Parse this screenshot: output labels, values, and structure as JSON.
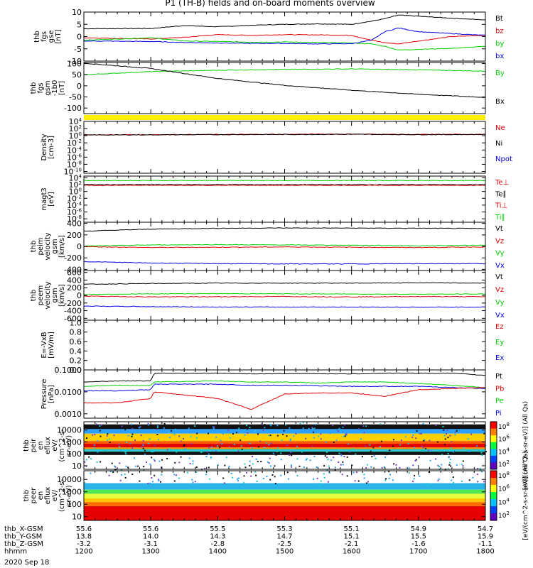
{
  "title": "P1 (TH-B) fields and on-board moments overview",
  "colors": {
    "black": "#000000",
    "red": "#e00000",
    "green": "#00d000",
    "blue": "#0000e0",
    "yellow": "#ffee00"
  },
  "footer": {
    "rows": [
      {
        "label": "thb_X-GSM",
        "values": [
          "55.6",
          "55.6",
          "55.5",
          "55.3",
          "55.1",
          "54.9",
          "54.7"
        ]
      },
      {
        "label": "thb_Y-GSM",
        "values": [
          "13.8",
          "14.0",
          "14.3",
          "14.7",
          "15.1",
          "15.5",
          "15.9"
        ]
      },
      {
        "label": "thb_Z-GSM",
        "values": [
          "-3.2",
          "-3.1",
          "-2.8",
          "-2.5",
          "-2.1",
          "-1.6",
          "-1.1"
        ]
      },
      {
        "label": "hhmm",
        "values": [
          "1200",
          "1300",
          "1400",
          "1500",
          "1600",
          "1700",
          "1800"
        ]
      }
    ],
    "date": "2020 Sep 18"
  },
  "chart_data": [
    {
      "id": "fgs-gse",
      "type": "line",
      "ylabel": [
        "thb",
        "fgs",
        "gse",
        "[nT]"
      ],
      "yticks": [
        "10",
        "5",
        "0",
        "-5",
        "-10"
      ],
      "ylim": [
        -10,
        10
      ],
      "legend": [
        {
          "name": "Bt",
          "color": "black"
        },
        {
          "name": "bz",
          "color": "red"
        },
        {
          "name": "by",
          "color": "green"
        },
        {
          "name": "bx",
          "color": "blue"
        }
      ],
      "x_hours": [
        12,
        13,
        13.5,
        14,
        14.5,
        15,
        15.5,
        16,
        16.3,
        16.5,
        16.7,
        17,
        17.5,
        18
      ],
      "series": [
        {
          "name": "Bt",
          "color": "black",
          "values": [
            3.2,
            3.3,
            4.5,
            4.0,
            4.6,
            5.0,
            5.2,
            5.0,
            6.3,
            7.3,
            8.8,
            8.3,
            7.5,
            6.8
          ]
        },
        {
          "name": "bz",
          "color": "red",
          "values": [
            -0.5,
            -1.0,
            -0.3,
            0.8,
            0.5,
            0.8,
            0.7,
            0.5,
            -1.5,
            -2.5,
            -3.0,
            -1.8,
            0.0,
            0.5
          ]
        },
        {
          "name": "by",
          "color": "green",
          "values": [
            -1.5,
            -0.5,
            -1.8,
            -2.0,
            -2.3,
            -2.2,
            -2.4,
            -2.6,
            -3.0,
            -4.0,
            -5.5,
            -5.2,
            -4.8,
            -4.0
          ]
        },
        {
          "name": "bx",
          "color": "blue",
          "values": [
            -1.8,
            -2.0,
            -2.4,
            -2.6,
            -2.8,
            -2.8,
            -3.0,
            -2.9,
            -1.5,
            2.0,
            3.5,
            2.0,
            1.2,
            0.5
          ]
        }
      ]
    },
    {
      "id": "fgs-gsm-1b0",
      "type": "line",
      "ylabel": [
        "thb",
        "fgs",
        "gsm",
        "-1b0",
        "[nT]"
      ],
      "yticks": [
        "100",
        "50",
        "0",
        "-50",
        "-100"
      ],
      "ylim": [
        -125,
        105
      ],
      "legend": [
        {
          "name": "By",
          "color": "green"
        },
        {
          "name": "Bx",
          "color": "black"
        }
      ],
      "x_hours": [
        12,
        13,
        14,
        15,
        16,
        17,
        18
      ],
      "series": [
        {
          "name": "By",
          "color": "green",
          "values": [
            50,
            64,
            70,
            74,
            76,
            72,
            66
          ]
        },
        {
          "name": "Bx",
          "color": "black",
          "values": [
            102,
            78,
            33,
            2,
            -20,
            -38,
            -52
          ]
        }
      ],
      "flag_band_color": "yellow"
    },
    {
      "id": "density",
      "type": "line",
      "log": true,
      "ylabel": [
        "Density",
        "[cm-3]"
      ],
      "yticks": [
        "10^4",
        "10^2",
        "10^0",
        "10^-2",
        "10^-4",
        "10^-6",
        "10^-8",
        "10^-10"
      ],
      "ylim_exp": [
        4,
        -10.5
      ],
      "legend": [
        {
          "name": "Ne",
          "color": "red"
        },
        {
          "name": "Ni",
          "color": "black"
        },
        {
          "name": "Npot",
          "color": "blue"
        }
      ],
      "x_hours": [
        12,
        13,
        14,
        15,
        16,
        17,
        18
      ],
      "series": [
        {
          "name": "Ne",
          "color": "red",
          "exp_values": [
            0.25,
            0.3,
            0.35,
            0.4,
            0.45,
            0.35,
            0.4
          ]
        },
        {
          "name": "Ni",
          "color": "black",
          "exp_values": [
            0.2,
            0.25,
            0.3,
            0.35,
            0.4,
            0.3,
            0.35
          ]
        }
      ]
    },
    {
      "id": "mag",
      "type": "line",
      "log": true,
      "ylabel": [
        "magt3",
        "[eV]"
      ],
      "yticks": [
        "10^4",
        "10^2",
        "10^0",
        "10^-2",
        "10^-4",
        "10^-6",
        "10^-8"
      ],
      "ylim_exp": [
        4.5,
        -9
      ],
      "legend": [
        {
          "name": "Te⊥",
          "color": "red"
        },
        {
          "name": "Te∥",
          "color": "black"
        },
        {
          "name": "Ti⊥",
          "color": "red"
        },
        {
          "name": "Ti∥",
          "color": "green"
        }
      ],
      "x_hours": [
        12,
        18
      ],
      "series": [
        {
          "name": "Ti∥",
          "color": "green",
          "exp_values": [
            3.2,
            3.2
          ]
        },
        {
          "name": "Te∥",
          "color": "black",
          "exp_values": [
            2.0,
            2.0
          ]
        },
        {
          "name": "Te⊥",
          "color": "red",
          "exp_values": [
            1.8,
            1.8
          ]
        }
      ]
    },
    {
      "id": "peim-velocity",
      "type": "line",
      "ylabel": [
        "thb",
        "peim",
        "velocity",
        "gsm",
        "[km/s]"
      ],
      "yticks": [
        "400",
        "200",
        "0",
        "-200",
        "-400"
      ],
      "ylim": [
        -420,
        420
      ],
      "legend": [
        {
          "name": "Vt",
          "color": "black"
        },
        {
          "name": "Vz",
          "color": "red"
        },
        {
          "name": "Vy",
          "color": "green"
        },
        {
          "name": "Vx",
          "color": "blue"
        }
      ],
      "x_hours": [
        12,
        13,
        14,
        15,
        16,
        17,
        18
      ],
      "series": [
        {
          "name": "Vt",
          "color": "black",
          "values": [
            265,
            300,
            315,
            320,
            318,
            315,
            310
          ]
        },
        {
          "name": "Vz",
          "color": "red",
          "values": [
            -5,
            -20,
            -15,
            -10,
            -15,
            -20,
            -10
          ]
        },
        {
          "name": "Vy",
          "color": "green",
          "values": [
            5,
            25,
            30,
            25,
            20,
            10,
            20
          ]
        },
        {
          "name": "Vx",
          "color": "blue",
          "values": [
            -265,
            -290,
            -300,
            -305,
            -305,
            -300,
            -300
          ]
        }
      ]
    },
    {
      "id": "peem-velocity",
      "type": "line",
      "ylabel": [
        "thb",
        "peem",
        "velocity",
        "gsm",
        "[km/s]"
      ],
      "yticks": [
        "600",
        "400",
        "200",
        "0",
        "-200",
        "-400",
        "-600"
      ],
      "ylim": [
        -650,
        650
      ],
      "legend": [
        {
          "name": "Vt",
          "color": "black"
        },
        {
          "name": "Vz",
          "color": "red"
        },
        {
          "name": "Vy",
          "color": "green"
        },
        {
          "name": "Vx",
          "color": "blue"
        }
      ],
      "x_hours": [
        12,
        13,
        14,
        15,
        16,
        17,
        18
      ],
      "series": [
        {
          "name": "Vt",
          "color": "black",
          "values": [
            290,
            310,
            320,
            320,
            320,
            330,
            320
          ]
        },
        {
          "name": "Vz",
          "color": "red",
          "values": [
            -20,
            -40,
            -35,
            -30,
            -40,
            -30,
            -35
          ]
        },
        {
          "name": "Vy",
          "color": "green",
          "values": [
            20,
            40,
            45,
            40,
            35,
            30,
            35
          ]
        },
        {
          "name": "Vx",
          "color": "blue",
          "values": [
            -280,
            -295,
            -305,
            -305,
            -305,
            -310,
            -305
          ]
        }
      ]
    },
    {
      "id": "efield",
      "type": "line",
      "ylabel": [
        "E=-VxB",
        "[mV/m]"
      ],
      "yticks": [
        "1.0",
        "0.8",
        "0.6",
        "0.4",
        "0.2",
        "0.0"
      ],
      "ylim": [
        0,
        1.05
      ],
      "legend": [
        {
          "name": "Ez",
          "color": "red"
        },
        {
          "name": "Ey",
          "color": "green"
        },
        {
          "name": "Ex",
          "color": "blue"
        }
      ],
      "x_hours": [],
      "series": []
    },
    {
      "id": "pressure",
      "type": "line",
      "log": true,
      "ylabel": [
        "Pressure",
        "[nPa]"
      ],
      "yticks": [
        "0.1000",
        "0.0100",
        "0.0010"
      ],
      "ylim_exp": [
        -1,
        -3.2
      ],
      "legend": [
        {
          "name": "Pt",
          "color": "black"
        },
        {
          "name": "Pb",
          "color": "red"
        },
        {
          "name": "Pe",
          "color": "green"
        },
        {
          "name": "Pi",
          "color": "blue"
        }
      ],
      "x_hours": [
        12,
        12.5,
        13,
        13.05,
        14,
        14.5,
        15,
        15.5,
        16,
        16.5,
        17,
        17.5,
        18
      ],
      "series": [
        {
          "name": "Pt",
          "color": "black",
          "exp_values": [
            -1.55,
            -1.5,
            -1.5,
            -1.15,
            -1.15,
            -1.18,
            -1.17,
            -1.17,
            -1.18,
            -1.15,
            -1.15,
            -1.15,
            -1.25
          ]
        },
        {
          "name": "Pe",
          "color": "green",
          "exp_values": [
            -1.75,
            -1.7,
            -1.72,
            -1.55,
            -1.5,
            -1.55,
            -1.55,
            -1.6,
            -1.55,
            -1.55,
            -1.62,
            -1.7,
            -1.8
          ]
        },
        {
          "name": "Pi",
          "color": "blue",
          "exp_values": [
            -1.95,
            -1.95,
            -1.9,
            -1.65,
            -1.65,
            -1.7,
            -1.7,
            -1.72,
            -1.75,
            -1.75,
            -1.75,
            -1.8,
            -1.85
          ]
        },
        {
          "name": "Pb",
          "color": "red",
          "exp_values": [
            -2.5,
            -2.5,
            -2.3,
            -2.0,
            -2.3,
            -2.8,
            -2.1,
            -2.05,
            -2.05,
            -2.2,
            -1.9,
            -1.85,
            -1.8
          ]
        }
      ]
    },
    {
      "id": "peir-eflux",
      "type": "heatmap",
      "ylabel": [
        "thb",
        "peir",
        "en",
        "eflux",
        "eV/",
        "(cm^2-s-",
        "sr-eV)"
      ],
      "yticks": [
        "10000",
        "1000",
        "100",
        "10"
      ],
      "ylim": [
        5,
        50000
      ],
      "bands": [
        {
          "from": 12000,
          "to": 30000,
          "color": "#111111"
        },
        {
          "from": 5000,
          "to": 12000,
          "color": "#2aa0ff"
        },
        {
          "from": 1200,
          "to": 5000,
          "color": "#ffd000"
        },
        {
          "from": 700,
          "to": 1200,
          "color": "#ff5a00"
        },
        {
          "from": 350,
          "to": 700,
          "color": "#e00000"
        },
        {
          "from": 250,
          "to": 350,
          "color": "#ff8c00"
        },
        {
          "from": 150,
          "to": 250,
          "color": "#22c8c8"
        },
        {
          "from": 80,
          "to": 150,
          "color": "#111111"
        }
      ]
    },
    {
      "id": "peer-eflux",
      "type": "heatmap",
      "ylabel": [
        "thb",
        "peer",
        "en",
        "eflux",
        "eV/",
        "(cm^2-s-",
        "sr-eV)"
      ],
      "yticks": [
        "10000",
        "1000",
        "100",
        "10"
      ],
      "ylim": [
        5,
        50000
      ],
      "bands": [
        {
          "from": 1500,
          "to": 5000,
          "color": "#2ab4e8"
        },
        {
          "from": 700,
          "to": 1500,
          "color": "#50e650"
        },
        {
          "from": 300,
          "to": 700,
          "color": "#e6ff3c"
        },
        {
          "from": 150,
          "to": 300,
          "color": "#ffc800"
        },
        {
          "from": 70,
          "to": 150,
          "color": "#ff6e00"
        },
        {
          "from": 5,
          "to": 70,
          "color": "#e60000"
        }
      ]
    }
  ],
  "colorbars": [
    {
      "ticks": [
        "10^8",
        "10^6",
        "10^4",
        "10^2"
      ],
      "label": "[eV/(cm^2-s-sr-eV)] (All Qs)"
    },
    {
      "ticks": [
        "10^8",
        "10^6",
        "10^4",
        "10^2"
      ],
      "label": "[eV/(cm^2-s-sr-eV)] (All Qs)"
    }
  ]
}
